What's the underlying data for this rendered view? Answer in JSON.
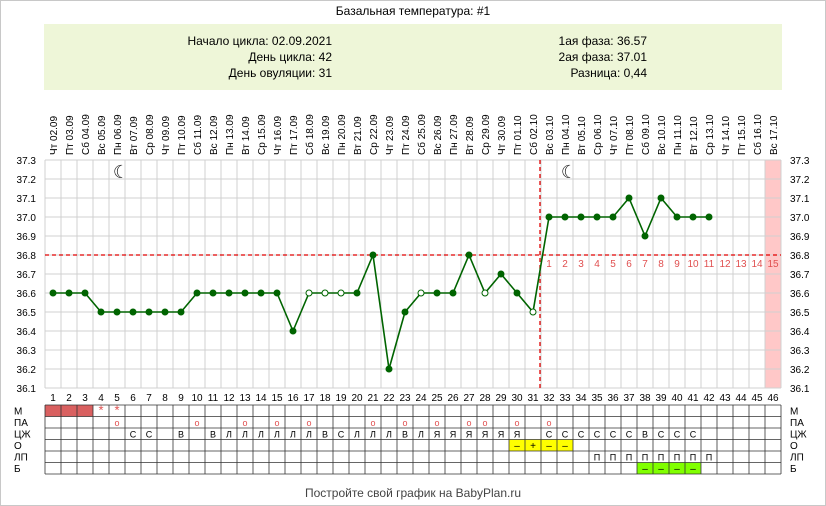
{
  "title": "Базальная температура: #1",
  "info": {
    "cycle_start": "Начало цикла: 02.09.2021",
    "cycle_day": "День цикла: 42",
    "ovulation_day": "День овуляции: 31",
    "phase1": "1ая фаза: 36.57",
    "phase2": "2ая фаза: 37.01",
    "difference": "Разница: 0,44"
  },
  "footer": "Постройте свой график на BabyPlan.ru",
  "colors": {
    "line": "#006400",
    "grid": "#d0d0d0",
    "coverline": "#e00000",
    "period": "#d96060",
    "highlight_pink": "#ffc8c8",
    "yellow": "#ffff00",
    "green": "#80ff00",
    "red_text": "#e05050"
  },
  "chart_data": {
    "type": "line",
    "title": "Базальная температура: #1",
    "dates": [
      "02.09",
      "03.09",
      "04.09",
      "05.09",
      "06.09",
      "07.09",
      "08.09",
      "09.09",
      "10.09",
      "11.09",
      "12.09",
      "13.09",
      "14.09",
      "15.09",
      "16.09",
      "17.09",
      "18.09",
      "19.09",
      "20.09",
      "21.09",
      "22.09",
      "23.09",
      "24.09",
      "25.09",
      "26.09",
      "27.09",
      "28.09",
      "29.09",
      "30.09",
      "01.10",
      "02.10",
      "03.10",
      "04.10",
      "05.10",
      "06.10",
      "07.10",
      "08.10",
      "09.10",
      "10.10",
      "11.10",
      "12.10",
      "13.10",
      "14.10",
      "15.10",
      "16.10",
      "17.10"
    ],
    "weekdays": [
      "Чт",
      "Пт",
      "Сб",
      "Вс",
      "Пн",
      "Вт",
      "Ср",
      "Чт",
      "Пт",
      "Сб",
      "Вс",
      "Пн",
      "Вт",
      "Ср",
      "Чт",
      "Пт",
      "Сб",
      "Вс",
      "Пн",
      "Вт",
      "Ср",
      "Чт",
      "Пт",
      "Сб",
      "Вс",
      "Пн",
      "Вт",
      "Ср",
      "Чт",
      "Пт",
      "Сб",
      "Вс",
      "Пн",
      "Вт",
      "Ср",
      "Чт",
      "Пт",
      "Сб",
      "Вс",
      "Пн",
      "Вт",
      "Ср",
      "Чт",
      "Пт",
      "Сб",
      "Вс"
    ],
    "cycle_days": [
      1,
      2,
      3,
      4,
      5,
      6,
      7,
      8,
      9,
      10,
      11,
      12,
      13,
      14,
      15,
      16,
      17,
      18,
      19,
      20,
      21,
      22,
      23,
      24,
      25,
      26,
      27,
      28,
      29,
      30,
      31,
      32,
      33,
      34,
      35,
      36,
      37,
      38,
      39,
      40,
      41,
      42,
      43,
      44,
      45,
      46
    ],
    "values": [
      36.6,
      36.6,
      36.6,
      36.5,
      36.5,
      36.5,
      36.5,
      36.5,
      36.5,
      36.6,
      36.6,
      36.6,
      36.6,
      36.6,
      36.6,
      36.4,
      36.6,
      36.6,
      36.6,
      36.6,
      36.8,
      36.2,
      36.5,
      36.6,
      36.6,
      36.6,
      36.8,
      36.6,
      36.7,
      36.6,
      36.5,
      37.0,
      37.0,
      37.0,
      37.0,
      37.0,
      37.1,
      36.9,
      37.1,
      37.0,
      37.0,
      37.0,
      null,
      null,
      null,
      null
    ],
    "hollow_points": [
      17,
      18,
      19,
      24,
      28,
      31
    ],
    "ylim": [
      36.1,
      37.3
    ],
    "yticks": [
      "36.1",
      "36.2",
      "36.3",
      "36.4",
      "36.5",
      "36.6",
      "36.7",
      "36.8",
      "36.9",
      "37.0",
      "37.1",
      "37.2",
      "37.3"
    ],
    "coverline": 36.8,
    "ovulation_day": 31,
    "luteal_numbers": [
      "1",
      "2",
      "3",
      "4",
      "5",
      "6",
      "7",
      "8",
      "9",
      "10",
      "11",
      "12",
      "13",
      "14",
      "15"
    ],
    "moon_days": [
      5,
      33
    ],
    "highlight_day": 46,
    "grid": true
  },
  "table": {
    "row_labels": [
      "М",
      "ПА",
      "ЦЖ",
      "О",
      "ЛП",
      "Б"
    ],
    "M": {
      "period_days": [
        1,
        2,
        3
      ],
      "stars": [
        {
          "day": 4,
          "text": "*"
        },
        {
          "day": 5,
          "text": "*"
        }
      ]
    },
    "PA": [
      {
        "day": 5,
        "text": "о"
      },
      {
        "day": 10,
        "text": "о"
      },
      {
        "day": 13,
        "text": "о"
      },
      {
        "day": 15,
        "text": "о"
      },
      {
        "day": 17,
        "text": "о"
      },
      {
        "day": 21,
        "text": "о"
      },
      {
        "day": 23,
        "text": "о"
      },
      {
        "day": 25,
        "text": "о"
      },
      {
        "day": 27,
        "text": "о"
      },
      {
        "day": 28,
        "text": "о"
      },
      {
        "day": 30,
        "text": "о"
      },
      {
        "day": 32,
        "text": "о"
      }
    ],
    "CZH": [
      {
        "day": 6,
        "text": "С"
      },
      {
        "day": 7,
        "text": "С"
      },
      {
        "day": 9,
        "text": "В"
      },
      {
        "day": 11,
        "text": "В"
      },
      {
        "day": 12,
        "text": "Л"
      },
      {
        "day": 13,
        "text": "Л"
      },
      {
        "day": 14,
        "text": "Л"
      },
      {
        "day": 15,
        "text": "Л"
      },
      {
        "day": 16,
        "text": "Л"
      },
      {
        "day": 17,
        "text": "Л"
      },
      {
        "day": 18,
        "text": "В"
      },
      {
        "day": 19,
        "text": "С"
      },
      {
        "day": 20,
        "text": "Л"
      },
      {
        "day": 21,
        "text": "Л"
      },
      {
        "day": 22,
        "text": "Л"
      },
      {
        "day": 23,
        "text": "В"
      },
      {
        "day": 24,
        "text": "Л"
      },
      {
        "day": 25,
        "text": "Я"
      },
      {
        "day": 26,
        "text": "Я"
      },
      {
        "day": 27,
        "text": "Я"
      },
      {
        "day": 28,
        "text": "Я"
      },
      {
        "day": 29,
        "text": "Я"
      },
      {
        "day": 30,
        "text": "Я"
      },
      {
        "day": 32,
        "text": "С"
      },
      {
        "day": 33,
        "text": "С"
      },
      {
        "day": 34,
        "text": "С"
      },
      {
        "day": 35,
        "text": "С"
      },
      {
        "day": 36,
        "text": "С"
      },
      {
        "day": 37,
        "text": "С"
      },
      {
        "day": 38,
        "text": "В"
      },
      {
        "day": 39,
        "text": "С"
      },
      {
        "day": 40,
        "text": "С"
      },
      {
        "day": 41,
        "text": "С"
      }
    ],
    "O": {
      "yellow_days": [
        30,
        31,
        32,
        33
      ],
      "marks": [
        {
          "day": 30,
          "text": "–"
        },
        {
          "day": 31,
          "text": "+"
        },
        {
          "day": 32,
          "text": "–"
        },
        {
          "day": 33,
          "text": "–"
        }
      ]
    },
    "LP": [
      {
        "day": 35,
        "text": "П"
      },
      {
        "day": 36,
        "text": "П"
      },
      {
        "day": 37,
        "text": "П"
      },
      {
        "day": 38,
        "text": "П"
      },
      {
        "day": 39,
        "text": "П"
      },
      {
        "day": 40,
        "text": "П"
      },
      {
        "day": 41,
        "text": "П"
      },
      {
        "day": 42,
        "text": "П"
      }
    ],
    "B": {
      "green_days": [
        38,
        39,
        40,
        41
      ],
      "marks": [
        {
          "day": 38,
          "text": "–"
        },
        {
          "day": 39,
          "text": "–"
        },
        {
          "day": 40,
          "text": "–"
        },
        {
          "day": 41,
          "text": "–"
        }
      ]
    }
  }
}
